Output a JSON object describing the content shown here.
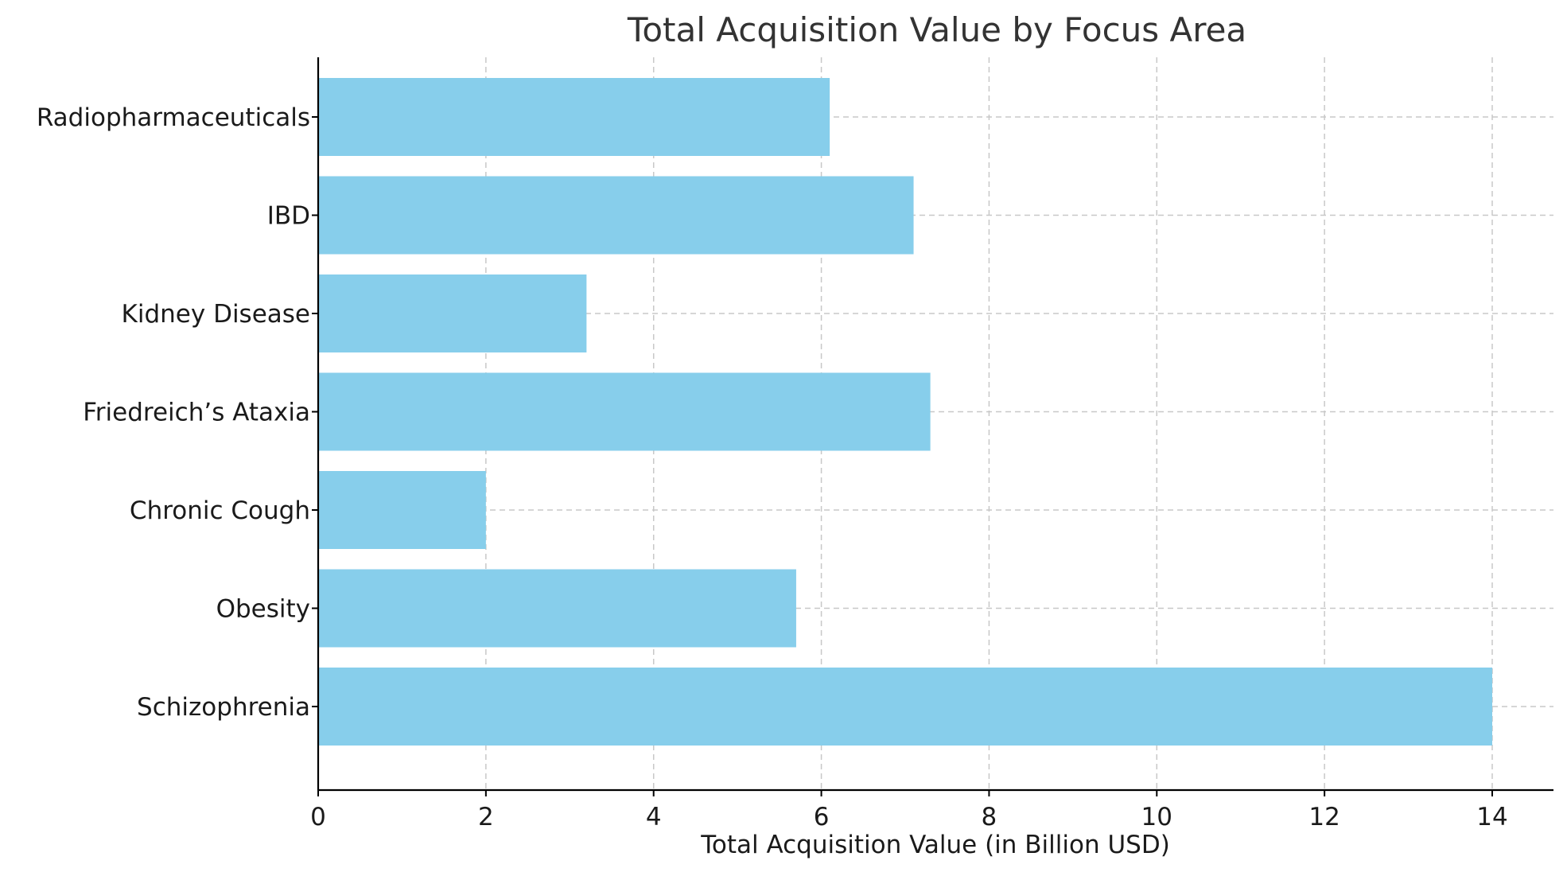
{
  "chart_data": {
    "type": "bar",
    "orientation": "horizontal",
    "title": "Total Acquisition Value by Focus Area",
    "xlabel": "Total Acquisition Value (in Billion USD)",
    "ylabel": "",
    "categories": [
      "Schizophrenia",
      "Obesity",
      "Chronic Cough",
      "Friedreich’s Ataxia",
      "Kidney Disease",
      "IBD",
      "Radiopharmaceuticals"
    ],
    "values": [
      14.0,
      5.7,
      2.0,
      7.3,
      3.2,
      7.1,
      6.1
    ],
    "xlim": [
      0,
      14.7
    ],
    "xticks": [
      0,
      2,
      4,
      6,
      8,
      10,
      12,
      14
    ],
    "xtick_labels": [
      "0",
      "2",
      "4",
      "6",
      "8",
      "10",
      "12",
      "14"
    ],
    "bar_color": "#87CEEB",
    "grid": true
  }
}
